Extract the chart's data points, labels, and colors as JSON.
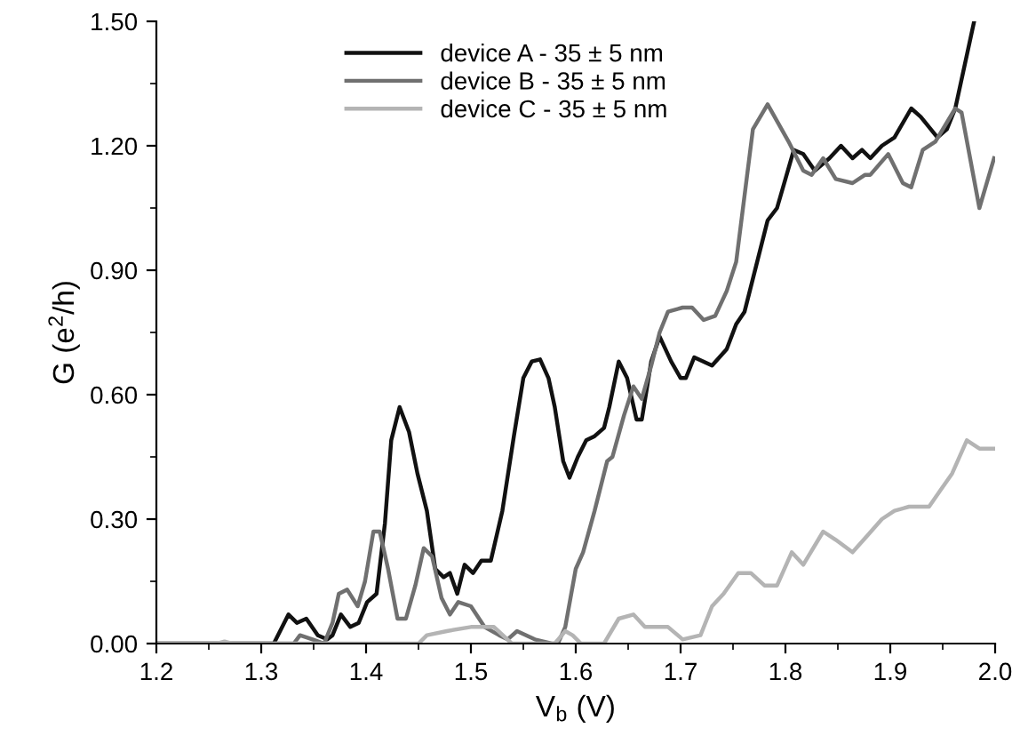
{
  "chart_data": {
    "type": "line",
    "xlabel": "V$_{b}$ (V)",
    "ylabel": "G (e$^{2}$/h)",
    "xlim": [
      1.2,
      2.0
    ],
    "ylim": [
      0,
      1.5
    ],
    "xticks": [
      1.2,
      1.3,
      1.4,
      1.5,
      1.6,
      1.7,
      1.8,
      1.9,
      {
        "value": 2.0,
        "label": "2.0"
      }
    ],
    "yticks": [
      {
        "value": 0,
        "label": "0.00"
      },
      {
        "value": 0.3,
        "label": "0.30"
      },
      {
        "value": 0.6,
        "label": "0.60"
      },
      {
        "value": 0.9,
        "label": "0.90"
      },
      {
        "value": 1.2,
        "label": "1.20"
      },
      {
        "value": 1.5,
        "label": "1.50"
      }
    ],
    "grid": false,
    "legend": "top left",
    "series": [
      {
        "name": "device A - 35 ± 5 nm",
        "color": "#111111",
        "x": [
          1.2,
          1.312,
          1.326,
          1.334,
          1.343,
          1.354,
          1.363,
          1.368,
          1.376,
          1.385,
          1.393,
          1.401,
          1.41,
          1.418,
          1.424,
          1.432,
          1.441,
          1.449,
          1.458,
          1.466,
          1.474,
          1.48,
          1.487,
          1.494,
          1.502,
          1.51,
          1.519,
          1.53,
          1.541,
          1.55,
          1.558,
          1.566,
          1.574,
          1.58,
          1.588,
          1.594,
          1.602,
          1.61,
          1.618,
          1.627,
          1.632,
          1.641,
          1.649,
          1.658,
          1.663,
          1.672,
          1.68,
          1.691,
          1.7,
          1.705,
          1.713,
          1.73,
          1.744,
          1.753,
          1.761,
          1.772,
          1.783,
          1.792,
          1.8,
          1.808,
          1.817,
          1.828,
          1.842,
          1.853,
          1.864,
          1.873,
          1.881,
          1.892,
          1.904,
          1.92,
          1.929,
          1.945,
          1.954,
          1.962,
          1.98
        ],
        "values": [
          0,
          0,
          0.07,
          0.05,
          0.06,
          0.02,
          0.01,
          0.02,
          0.07,
          0.04,
          0.05,
          0.1,
          0.12,
          0.29,
          0.49,
          0.57,
          0.51,
          0.41,
          0.32,
          0.18,
          0.16,
          0.17,
          0.12,
          0.19,
          0.17,
          0.2,
          0.2,
          0.32,
          0.5,
          0.64,
          0.68,
          0.685,
          0.64,
          0.57,
          0.44,
          0.4,
          0.45,
          0.49,
          0.5,
          0.52,
          0.57,
          0.68,
          0.64,
          0.54,
          0.54,
          0.68,
          0.74,
          0.68,
          0.64,
          0.64,
          0.69,
          0.67,
          0.71,
          0.77,
          0.8,
          0.91,
          1.02,
          1.05,
          1.12,
          1.19,
          1.18,
          1.14,
          1.17,
          1.2,
          1.17,
          1.19,
          1.17,
          1.2,
          1.22,
          1.29,
          1.27,
          1.22,
          1.24,
          1.29,
          1.5
        ]
      },
      {
        "name": "device B - 35 ± 5 nm",
        "color": "#707070",
        "x": [
          1.2,
          1.331,
          1.337,
          1.349,
          1.36,
          1.368,
          1.374,
          1.382,
          1.392,
          1.399,
          1.407,
          1.413,
          1.421,
          1.43,
          1.438,
          1.447,
          1.455,
          1.463,
          1.472,
          1.48,
          1.488,
          1.5,
          1.513,
          1.527,
          1.535,
          1.544,
          1.561,
          1.577,
          1.583,
          1.59,
          1.6,
          1.607,
          1.618,
          1.63,
          1.635,
          1.646,
          1.655,
          1.663,
          1.672,
          1.68,
          1.688,
          1.702,
          1.711,
          1.722,
          1.733,
          1.744,
          1.753,
          1.761,
          1.769,
          1.783,
          1.803,
          1.817,
          1.825,
          1.836,
          1.848,
          1.864,
          1.876,
          1.881,
          1.898,
          1.912,
          1.92,
          1.931,
          1.943,
          1.962,
          1.968,
          1.985,
          1.999
        ],
        "values": [
          0,
          0,
          0.02,
          0.01,
          0,
          0.05,
          0.12,
          0.13,
          0.09,
          0.15,
          0.27,
          0.27,
          0.18,
          0.06,
          0.06,
          0.14,
          0.23,
          0.21,
          0.11,
          0.07,
          0.1,
          0.09,
          0.04,
          0.02,
          0.01,
          0.03,
          0.01,
          0,
          0,
          0.04,
          0.18,
          0.22,
          0.32,
          0.44,
          0.45,
          0.55,
          0.62,
          0.59,
          0.67,
          0.75,
          0.8,
          0.81,
          0.81,
          0.78,
          0.79,
          0.85,
          0.92,
          1.08,
          1.24,
          1.3,
          1.21,
          1.14,
          1.13,
          1.17,
          1.12,
          1.11,
          1.13,
          1.13,
          1.18,
          1.11,
          1.1,
          1.19,
          1.21,
          1.29,
          1.28,
          1.05,
          1.17
        ]
      },
      {
        "name": "device C - 35 ± 5 nm",
        "color": "#b4b4b4",
        "x": [
          1.2,
          1.258,
          1.265,
          1.272,
          1.45,
          1.458,
          1.477,
          1.5,
          1.522,
          1.539,
          1.58,
          1.59,
          1.597,
          1.605,
          1.627,
          1.641,
          1.655,
          1.666,
          1.688,
          1.702,
          1.719,
          1.73,
          1.741,
          1.755,
          1.767,
          1.78,
          1.792,
          1.806,
          1.817,
          1.836,
          1.848,
          1.864,
          1.878,
          1.892,
          1.904,
          1.918,
          1.937,
          1.948,
          1.959,
          1.973,
          1.985,
          1.999
        ],
        "values": [
          0,
          0,
          0.005,
          0,
          0,
          0.02,
          0.03,
          0.04,
          0.04,
          0,
          0,
          0.03,
          0.02,
          0,
          0,
          0.06,
          0.07,
          0.04,
          0.04,
          0.01,
          0.02,
          0.09,
          0.12,
          0.17,
          0.17,
          0.14,
          0.14,
          0.22,
          0.19,
          0.27,
          0.25,
          0.22,
          0.26,
          0.3,
          0.32,
          0.33,
          0.33,
          0.37,
          0.41,
          0.49,
          0.47,
          0.47
        ]
      }
    ]
  }
}
